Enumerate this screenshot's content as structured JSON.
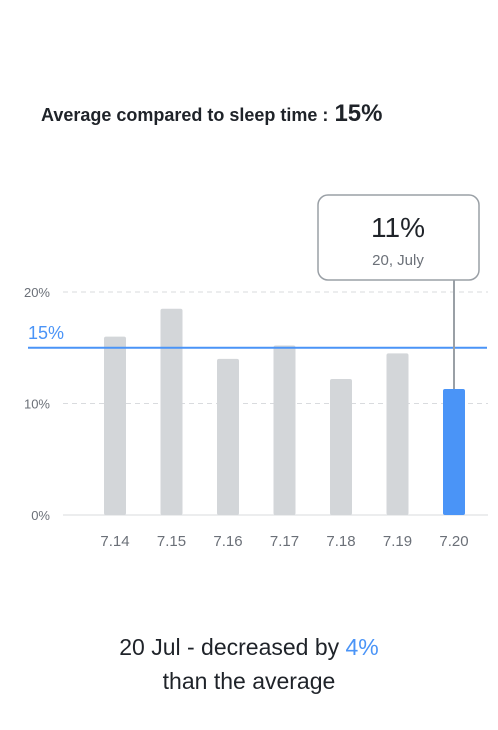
{
  "header": {
    "label": "Average compared to sleep time :",
    "value": "15%"
  },
  "tooltip": {
    "value": "11%",
    "date": "20, July"
  },
  "summary": {
    "line1_prefix": "20 Jul - decreased by ",
    "line1_value": "4%",
    "line2": "than the average"
  },
  "colors": {
    "bar": "#d3d6d9",
    "highlight": "#4a94f7",
    "average_line": "#4a94f7",
    "grid": "#d9dbde",
    "tick_text": "#6b7078",
    "tooltip_border": "#9aa0a6"
  },
  "chart_data": {
    "type": "bar",
    "categories": [
      "7.14",
      "7.15",
      "7.16",
      "7.17",
      "7.18",
      "7.19",
      "7.20"
    ],
    "values": [
      16,
      18.5,
      14,
      15.2,
      12.2,
      14.5,
      11.3
    ],
    "highlight_index": 6,
    "average": 15,
    "average_label": "15%",
    "ylim": [
      0,
      20
    ],
    "yticks": [
      0,
      10,
      20
    ],
    "ytick_labels": [
      "0%",
      "10%",
      "20%"
    ],
    "grid": true
  }
}
